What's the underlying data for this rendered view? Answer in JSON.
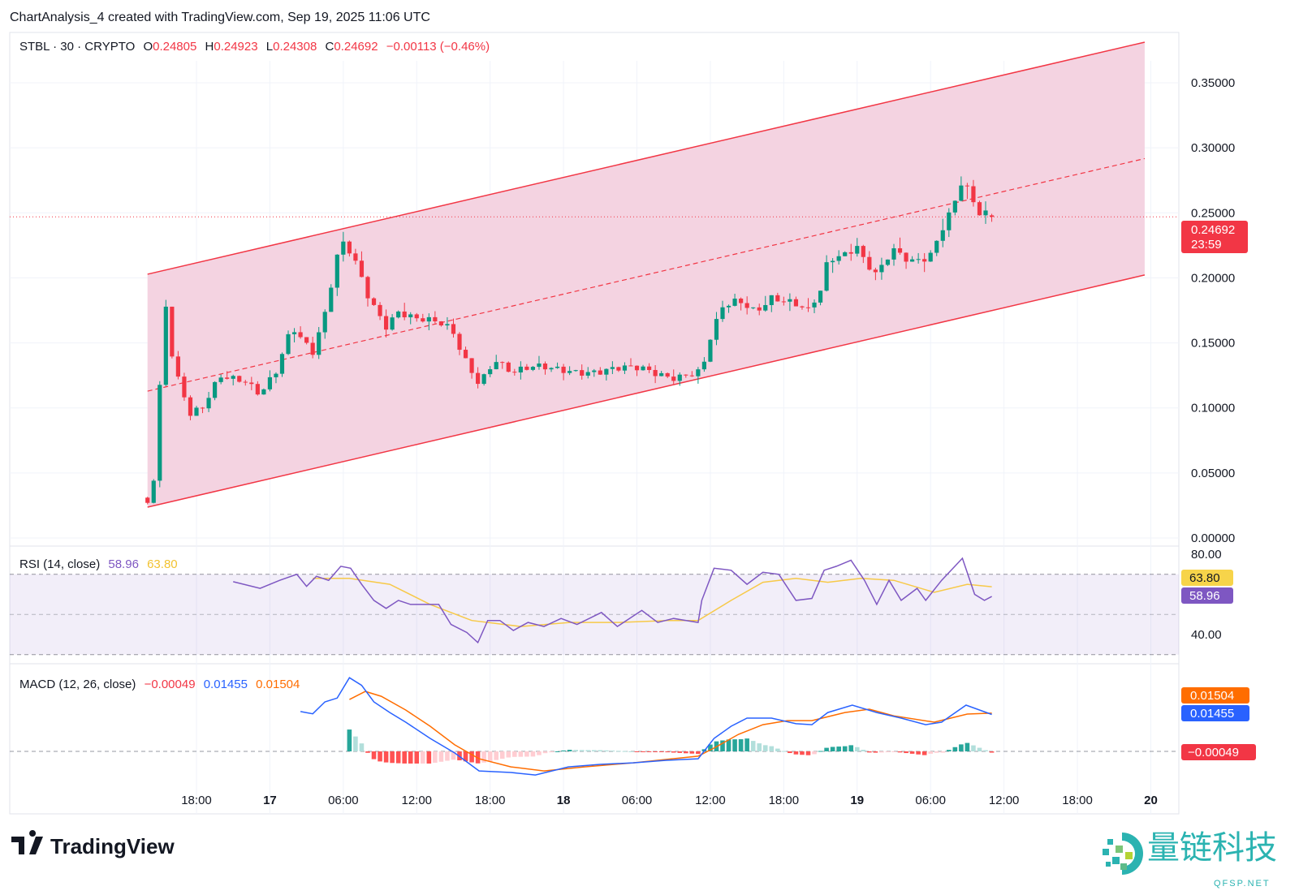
{
  "header": {
    "caption": "ChartAnalysis_4 created with TradingView.com, Sep 19, 2025 11:06 UTC",
    "symbol": "STBL · 30 · CRYPTO",
    "o_label": "O",
    "o_value": "0.24805",
    "h_label": "H",
    "h_value": "0.24923",
    "l_label": "L",
    "l_value": "0.24308",
    "c_label": "C",
    "c_value": "0.24692",
    "change": "−0.00113 (−0.46%)"
  },
  "price_badge": {
    "value": "0.24692",
    "countdown": "23:59"
  },
  "rsi": {
    "title": "RSI (14, close)",
    "value": "58.96",
    "ma_value": "63.80",
    "ticks": [
      "80.00",
      "40.00"
    ]
  },
  "macd": {
    "title": "MACD (12, 26, close)",
    "hist_value": "−0.00049",
    "macd_value": "0.01455",
    "signal_value": "0.01504"
  },
  "branding": {
    "tv_logo": "TradingView",
    "watermark_cn": "量链科技",
    "watermark_en": "QFSP.NET"
  },
  "colors": {
    "up": "#089981",
    "down": "#F23645",
    "channel_fill": "#f3d1df",
    "rsi_line": "#7E57C2",
    "rsi_ma": "#F7C948",
    "macd": "#2962FF",
    "signal": "#FF6D00",
    "watermark": "#2bb3b1"
  },
  "chart_data": [
    {
      "type": "candlestick",
      "title": "STBL · 30 · CRYPTO",
      "time_unit": "hours since Sep 16 00:00 UTC",
      "bar_interval_hours": 0.5,
      "first_bar": 14,
      "last_bar": 83,
      "y_ticks": [
        "0.35000",
        "0.30000",
        "0.25000",
        "0.20000",
        "0.15000",
        "0.10000",
        "0.05000",
        "0.00000"
      ],
      "y_tick_values": [
        0.35,
        0.3,
        0.25,
        0.2,
        0.15,
        0.1,
        0.05,
        0.0
      ],
      "ylim": [
        0,
        0.385
      ],
      "x_ticks": [
        {
          "t": 18,
          "label": "18:00",
          "bold": false
        },
        {
          "t": 24,
          "label": "17",
          "bold": true
        },
        {
          "t": 30,
          "label": "06:00",
          "bold": false
        },
        {
          "t": 36,
          "label": "12:00",
          "bold": false
        },
        {
          "t": 42,
          "label": "18:00",
          "bold": false
        },
        {
          "t": 48,
          "label": "18",
          "bold": true
        },
        {
          "t": 54,
          "label": "06:00",
          "bold": false
        },
        {
          "t": 60,
          "label": "12:00",
          "bold": false
        },
        {
          "t": 66,
          "label": "18:00",
          "bold": false
        },
        {
          "t": 72,
          "label": "19",
          "bold": true
        },
        {
          "t": 78,
          "label": "06:00",
          "bold": false
        },
        {
          "t": 84,
          "label": "12:00",
          "bold": false
        },
        {
          "t": 90,
          "label": "18:00",
          "bold": false
        },
        {
          "t": 96,
          "label": "20",
          "bold": true
        }
      ],
      "close_path": [
        [
          14,
          0.027
        ],
        [
          14.5,
          0.045
        ],
        [
          15,
          0.114
        ],
        [
          15.5,
          0.176
        ],
        [
          16,
          0.139
        ],
        [
          16.5,
          0.12
        ],
        [
          17.5,
          0.095
        ],
        [
          18.5,
          0.102
        ],
        [
          19.9,
          0.127
        ],
        [
          21.9,
          0.12
        ],
        [
          23.2,
          0.108
        ],
        [
          24.5,
          0.127
        ],
        [
          25.8,
          0.164
        ],
        [
          27.5,
          0.145
        ],
        [
          28.5,
          0.173
        ],
        [
          29.6,
          0.22
        ],
        [
          30.1,
          0.226
        ],
        [
          31.1,
          0.208
        ],
        [
          32.1,
          0.183
        ],
        [
          33.5,
          0.164
        ],
        [
          34.5,
          0.176
        ],
        [
          35.8,
          0.17
        ],
        [
          37.8,
          0.164
        ],
        [
          38.9,
          0.158
        ],
        [
          39.8,
          0.139
        ],
        [
          41.1,
          0.12
        ],
        [
          42.4,
          0.139
        ],
        [
          43.8,
          0.127
        ],
        [
          45.7,
          0.13
        ],
        [
          48.4,
          0.13
        ],
        [
          51,
          0.128
        ],
        [
          54.4,
          0.13
        ],
        [
          57,
          0.125
        ],
        [
          59.3,
          0.127
        ],
        [
          60,
          0.152
        ],
        [
          61,
          0.176
        ],
        [
          62.3,
          0.183
        ],
        [
          63.7,
          0.176
        ],
        [
          65,
          0.186
        ],
        [
          66.6,
          0.18
        ],
        [
          68,
          0.173
        ],
        [
          69,
          0.189
        ],
        [
          69.6,
          0.214
        ],
        [
          71,
          0.22
        ],
        [
          72,
          0.226
        ],
        [
          72.6,
          0.214
        ],
        [
          73.6,
          0.202
        ],
        [
          74.9,
          0.22
        ],
        [
          76.3,
          0.211
        ],
        [
          77.9,
          0.217
        ],
        [
          78.9,
          0.239
        ],
        [
          79.9,
          0.258
        ],
        [
          80.6,
          0.276
        ],
        [
          81.2,
          0.264
        ],
        [
          81.9,
          0.248
        ],
        [
          83,
          0.24692
        ]
      ],
      "last_bar_ohlc": {
        "open": 0.24805,
        "high": 0.24923,
        "low": 0.24308,
        "close": 0.24692
      },
      "channel": {
        "upper": [
          [
            14,
            0.2028
          ],
          [
            95.5,
            0.3812
          ]
        ],
        "middle": [
          [
            14,
            0.1129
          ],
          [
            95.5,
            0.2917
          ]
        ],
        "lower": [
          [
            14,
            0.0237
          ],
          [
            95.5,
            0.2022
          ]
        ]
      },
      "last_price": 0.24692
    },
    {
      "type": "line",
      "title": "RSI (14, close)",
      "ylim": [
        24,
        84
      ],
      "bands": [
        70,
        50,
        30
      ],
      "series": [
        {
          "name": "RSI",
          "points": [
            [
              21,
              66.3
            ],
            [
              23.2,
              63
            ],
            [
              24.8,
              67
            ],
            [
              26.2,
              70
            ],
            [
              27,
              64
            ],
            [
              27.8,
              69
            ],
            [
              28.8,
              67
            ],
            [
              29.8,
              74
            ],
            [
              30.6,
              73
            ],
            [
              31.5,
              65
            ],
            [
              32.5,
              57
            ],
            [
              33.5,
              53
            ],
            [
              34.5,
              57
            ],
            [
              35.5,
              55
            ],
            [
              36.5,
              55
            ],
            [
              37.8,
              55
            ],
            [
              38.8,
              45
            ],
            [
              40.1,
              41
            ],
            [
              41,
              36
            ],
            [
              41.8,
              47
            ],
            [
              42.8,
              47
            ],
            [
              43.9,
              42
            ],
            [
              45.1,
              46
            ],
            [
              46.4,
              44
            ],
            [
              47.8,
              48
            ],
            [
              49.1,
              45
            ],
            [
              51.1,
              51
            ],
            [
              52.4,
              44
            ],
            [
              54.4,
              52
            ],
            [
              55.7,
              46
            ],
            [
              57,
              48
            ],
            [
              59,
              46
            ],
            [
              59.3,
              57
            ],
            [
              60.3,
              73
            ],
            [
              61.7,
              72
            ],
            [
              63,
              65
            ],
            [
              64.3,
              71
            ],
            [
              65.6,
              70
            ],
            [
              67,
              57
            ],
            [
              68.3,
              58
            ],
            [
              69.3,
              72
            ],
            [
              70.3,
              74
            ],
            [
              71.5,
              77
            ],
            [
              72.6,
              67
            ],
            [
              73.6,
              55
            ],
            [
              74.6,
              67
            ],
            [
              75.6,
              57
            ],
            [
              76.9,
              63
            ],
            [
              77.6,
              57
            ],
            [
              78.9,
              67
            ],
            [
              80.6,
              78
            ],
            [
              81.6,
              60
            ],
            [
              82.4,
              57
            ],
            [
              83,
              58.96
            ]
          ]
        },
        {
          "name": "RSI-based MA",
          "points": [
            [
              27.5,
              68
            ],
            [
              30.5,
              68
            ],
            [
              33.8,
              65
            ],
            [
              37.1,
              55
            ],
            [
              40.5,
              47
            ],
            [
              44.5,
              44
            ],
            [
              48.5,
              46
            ],
            [
              52.5,
              46
            ],
            [
              56.5,
              47
            ],
            [
              59,
              47
            ],
            [
              61.7,
              57
            ],
            [
              64.3,
              66
            ],
            [
              67,
              68
            ],
            [
              69.6,
              66
            ],
            [
              72.3,
              68
            ],
            [
              75,
              67
            ],
            [
              78.3,
              61
            ],
            [
              81,
              65
            ],
            [
              83,
              63.8
            ]
          ]
        }
      ]
    },
    {
      "type": "line",
      "title": "MACD (12, 26, close)",
      "ylim": [
        -0.0124,
        0.0313
      ],
      "series": [
        {
          "name": "MACD",
          "points": [
            [
              26.5,
              0.0157
            ],
            [
              27.5,
              0.0148
            ],
            [
              28.5,
              0.0195
            ],
            [
              29.5,
              0.021
            ],
            [
              30.5,
              0.029
            ],
            [
              31.5,
              0.026
            ],
            [
              32.5,
              0.0195
            ],
            [
              33.8,
              0.0153
            ],
            [
              35.1,
              0.0115
            ],
            [
              37.1,
              0.0051
            ],
            [
              39.1,
              -0.0006
            ],
            [
              41.1,
              -0.0077
            ],
            [
              43.7,
              -0.0083
            ],
            [
              45.7,
              -0.0093
            ],
            [
              48.4,
              -0.0061
            ],
            [
              51,
              -0.0051
            ],
            [
              53.7,
              -0.0045
            ],
            [
              56.4,
              -0.0035
            ],
            [
              59,
              -0.0029
            ],
            [
              60.3,
              0.0051
            ],
            [
              61.7,
              0.0099
            ],
            [
              63,
              0.0131
            ],
            [
              65,
              0.0131
            ],
            [
              67,
              0.0109
            ],
            [
              68.3,
              0.0105
            ],
            [
              69.6,
              0.0153
            ],
            [
              71.6,
              0.0182
            ],
            [
              73.6,
              0.0153
            ],
            [
              75.6,
              0.0131
            ],
            [
              77.6,
              0.0105
            ],
            [
              78.9,
              0.0115
            ],
            [
              80.9,
              0.0182
            ],
            [
              83,
              0.01455
            ]
          ]
        },
        {
          "name": "Signal",
          "points": [
            [
              30.5,
              0.0204
            ],
            [
              31.8,
              0.0236
            ],
            [
              33.1,
              0.0217
            ],
            [
              35.1,
              0.0163
            ],
            [
              37.1,
              0.0099
            ],
            [
              39.1,
              0.0026
            ],
            [
              41.1,
              -0.0029
            ],
            [
              43.7,
              -0.0061
            ],
            [
              46.4,
              -0.0077
            ],
            [
              49.7,
              -0.0061
            ],
            [
              53.7,
              -0.0045
            ],
            [
              59,
              -0.0019
            ],
            [
              60.3,
              0.0013
            ],
            [
              62.3,
              0.0067
            ],
            [
              64.3,
              0.0105
            ],
            [
              66.3,
              0.0121
            ],
            [
              68.3,
              0.0121
            ],
            [
              71,
              0.0153
            ],
            [
              73,
              0.0166
            ],
            [
              75,
              0.014
            ],
            [
              78.3,
              0.0115
            ],
            [
              81,
              0.0147
            ],
            [
              83,
              0.01504
            ]
          ]
        },
        {
          "name": "Histogram",
          "derived": "MACD - Signal"
        }
      ]
    }
  ]
}
